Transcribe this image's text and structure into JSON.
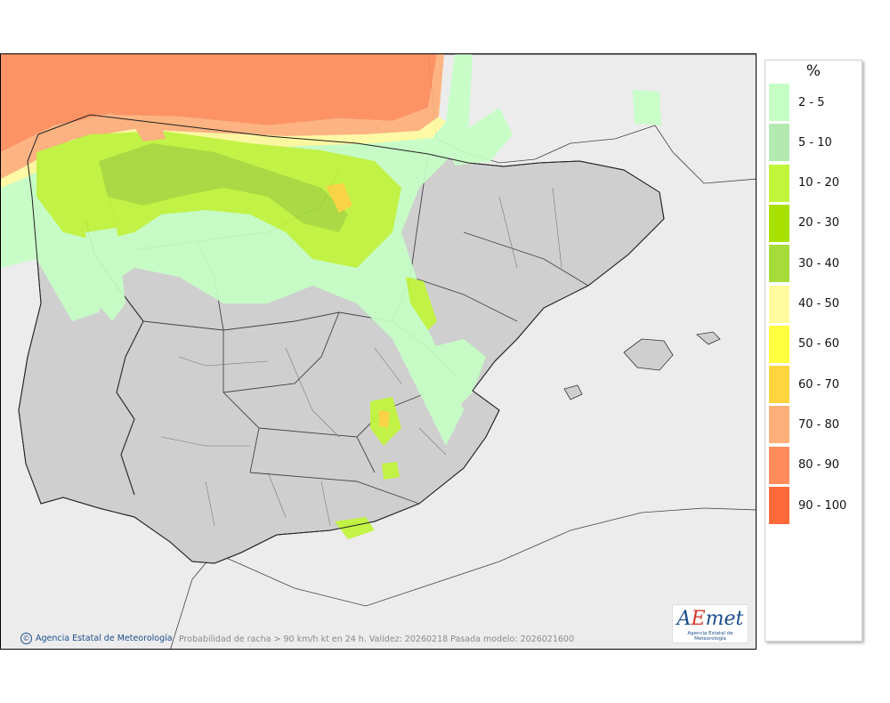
{
  "footer": {
    "credit": "Agencia Estatal de Meteorología",
    "caption": "Probabilidad de racha > 90 km/h kt en 24 h. Validez: 20260218 Pasada modelo: 2026021600"
  },
  "logo": {
    "mark_a": "A",
    "mark_e": "E",
    "mark_rest": "met",
    "subtitle": "Agencia Estatal de Meteorología"
  },
  "legend": {
    "title": "%",
    "items": [
      {
        "label": "2 - 5",
        "color": "#c6ffc6"
      },
      {
        "label": "5 - 10",
        "color": "#b2eab2"
      },
      {
        "label": "10 - 20",
        "color": "#c0f53a"
      },
      {
        "label": "20 - 30",
        "color": "#a8e000"
      },
      {
        "label": "30 - 40",
        "color": "#a6dc3a"
      },
      {
        "label": "40 - 50",
        "color": "#fffb9e"
      },
      {
        "label": "50 - 60",
        "color": "#ffff40"
      },
      {
        "label": "60 - 70",
        "color": "#ffd43c"
      },
      {
        "label": "70 - 80",
        "color": "#ffb07a"
      },
      {
        "label": "80 - 90",
        "color": "#ff8c5a"
      },
      {
        "label": "90 - 100",
        "color": "#ff6a3a"
      }
    ]
  },
  "map": {
    "sea_color": "#ececec",
    "land_color": "#cfcfcf"
  }
}
